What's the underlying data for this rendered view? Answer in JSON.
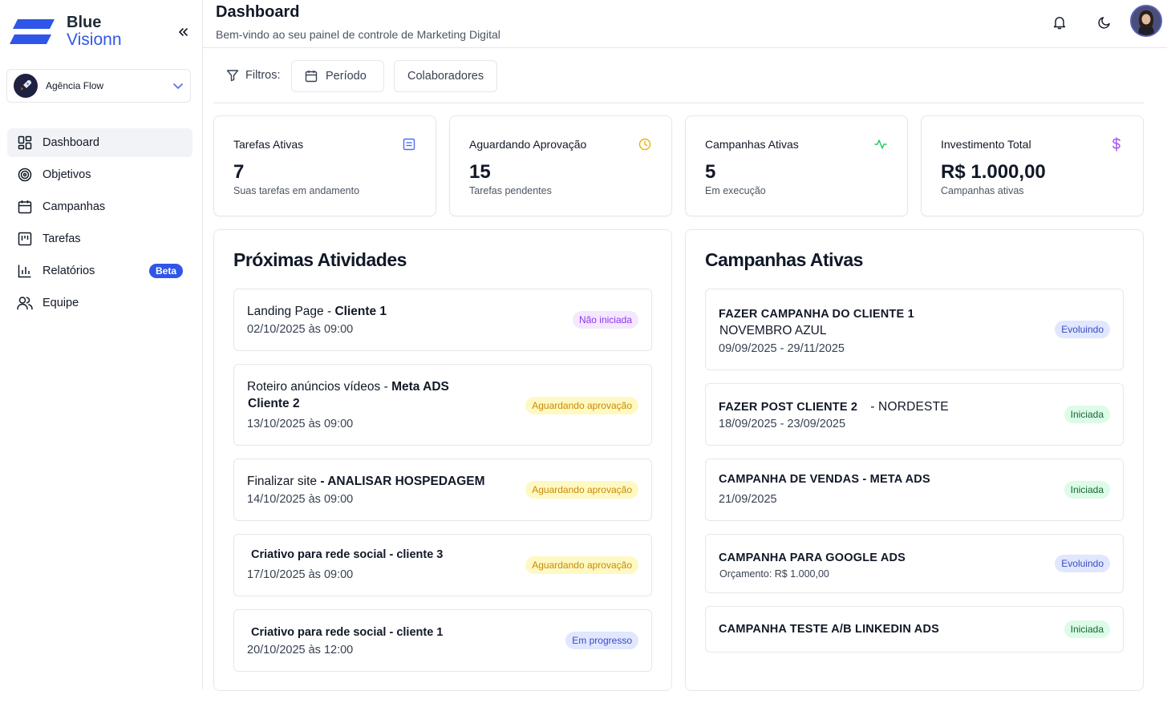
{
  "sidebar": {
    "logo_line1": "Blue",
    "logo_line2": "Visionn",
    "agency": "Agência Flow",
    "items": [
      {
        "label": "Dashboard",
        "icon": "dashboard-grid-icon",
        "active": true
      },
      {
        "label": "Objetivos",
        "icon": "target-icon"
      },
      {
        "label": "Campanhas",
        "icon": "calendar-icon"
      },
      {
        "label": "Tarefas",
        "icon": "kanban-icon"
      },
      {
        "label": "Relatórios",
        "icon": "bar-chart-icon",
        "badge": "Beta"
      },
      {
        "label": "Equipe",
        "icon": "users-icon"
      }
    ]
  },
  "header": {
    "title": "Dashboard",
    "subtitle": "Bem-vindo ao seu painel de controle de Marketing Digital"
  },
  "filters": {
    "label": "Filtros:",
    "period": "Período",
    "collaborators": "Colaboradores"
  },
  "stats": [
    {
      "title": "Tarefas Ativas",
      "value": "7",
      "desc": "Suas tarefas em andamento",
      "icon": "task-list-icon",
      "color": "#4f6bed"
    },
    {
      "title": "Aguardando Aprovação",
      "value": "15",
      "desc": "Tarefas pendentes",
      "icon": "clock-icon",
      "color": "#eab308"
    },
    {
      "title": "Campanhas Ativas",
      "value": "5",
      "desc": "Em execução",
      "icon": "activity-icon",
      "color": "#22c55e"
    },
    {
      "title": "Investimento Total",
      "value": "R$ 1.000,00",
      "desc": "Campanhas ativas",
      "icon": "dollar-icon",
      "color": "#a855f7"
    }
  ],
  "activities": {
    "title": "Próximas Atividades",
    "items": [
      {
        "name": "Landing Page - ",
        "client": "Cliente 1",
        "date": "02/10/2025 às 09:00",
        "status": "Não iniciada"
      },
      {
        "name": "Roteiro anúncios vídeos - ",
        "client": "Meta ADS",
        "client2": "Cliente 2",
        "date": "13/10/2025 às 09:00",
        "status": "Aguardando aprovação"
      },
      {
        "name": "Finalizar site ",
        "client": "- ANALISAR HOSPEDAGEM",
        "date": "14/10/2025 às 09:00",
        "status": "Aguardando aprovação"
      },
      {
        "name": "Criativo para rede social - cliente 3",
        "date": "17/10/2025 às 09:00",
        "status": "Aguardando aprovação"
      },
      {
        "name": "Criativo para rede social - cliente 1",
        "date": "20/10/2025 às 12:00",
        "status": "Em progresso"
      }
    ]
  },
  "campaigns": {
    "title": "Campanhas Ativas",
    "items": [
      {
        "line1": "FAZER CAMPANHA DO CLIENTE 1",
        "line2": "NOVEMBRO AZUL",
        "date": "09/09/2025 - 29/11/2025",
        "status": "Evoluindo"
      },
      {
        "line1": "FAZER POST CLIENTE 2",
        "line1b": "- NORDESTE",
        "date": "18/09/2025 - 23/09/2025",
        "status": "Iniciada"
      },
      {
        "line1": "CAMPANHA DE VENDAS  - META ADS",
        "date": "21/09/2025",
        "status": "Iniciada"
      },
      {
        "line1": "CAMPANHA PARA GOOGLE ADS",
        "sub": "Orçamento: R$ 1.000,00",
        "status": "Evoluindo"
      },
      {
        "line1": "CAMPANHA TESTE A/B LINKEDIN ADS",
        "status": "Iniciada"
      }
    ]
  }
}
